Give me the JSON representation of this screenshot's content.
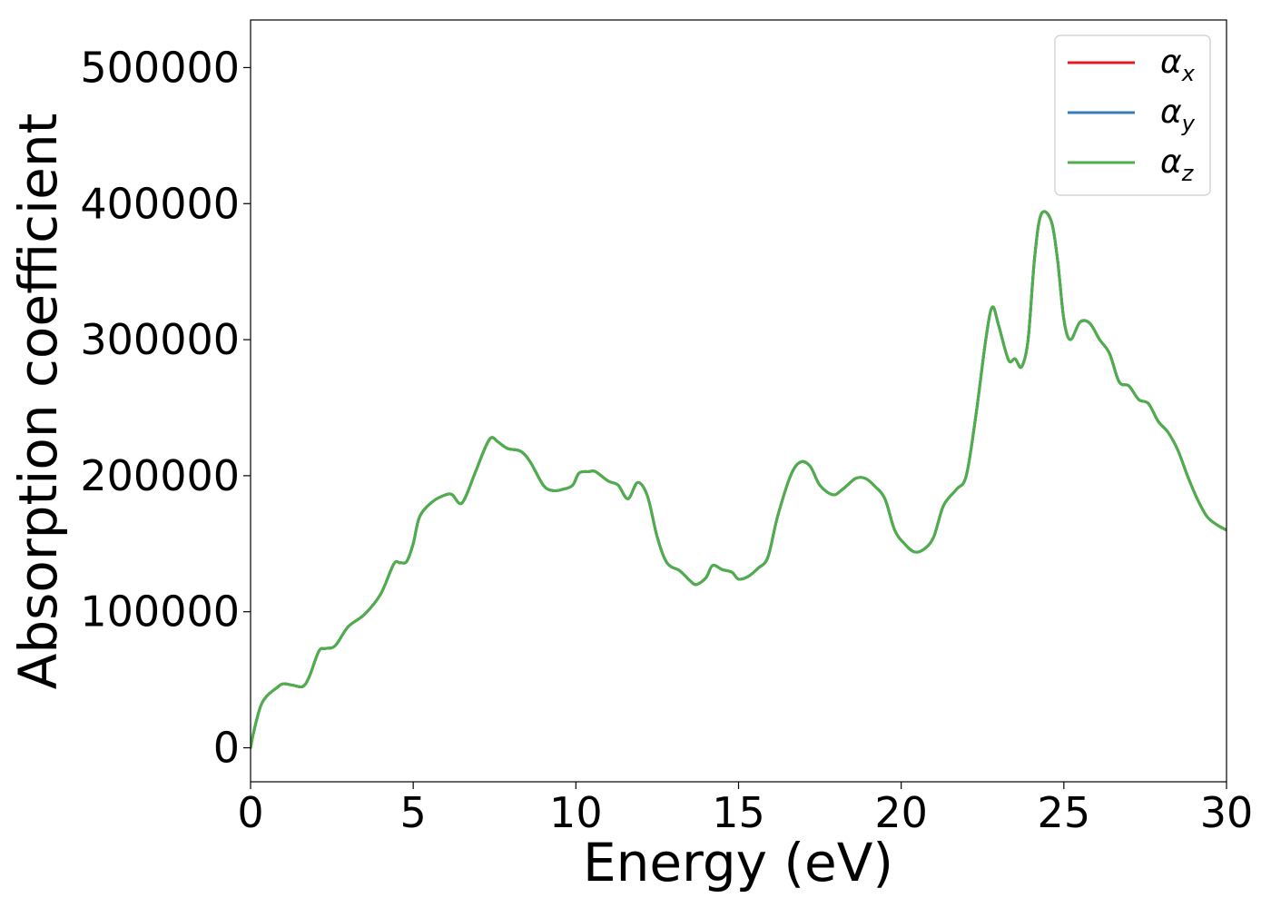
{
  "chart_data": {
    "type": "line",
    "xlabel": "Energy (eV)",
    "ylabel": "Absorption coefficient",
    "xlim": [
      0,
      30
    ],
    "ylim": [
      -25000,
      535000
    ],
    "xticks": [
      0,
      5,
      10,
      15,
      20,
      25,
      30
    ],
    "xtick_labels": [
      "0",
      "5",
      "10",
      "15",
      "20",
      "25",
      "30"
    ],
    "yticks": [
      0,
      100000,
      200000,
      300000,
      400000,
      500000
    ],
    "ytick_labels": [
      "0",
      "100000",
      "200000",
      "300000",
      "400000",
      "500000"
    ],
    "grid": false,
    "legend_position": "top-right",
    "x": [
      0,
      0.1,
      0.3,
      0.5,
      0.8,
      1.0,
      1.3,
      1.6,
      1.8,
      2.1,
      2.3,
      2.6,
      3.0,
      3.5,
      4.0,
      4.4,
      4.6,
      4.8,
      5.0,
      5.2,
      5.6,
      6.0,
      6.2,
      6.5,
      6.9,
      7.2,
      7.4,
      7.6,
      7.9,
      8.3,
      8.6,
      9.0,
      9.3,
      9.6,
      9.9,
      10.1,
      10.4,
      10.6,
      11.0,
      11.3,
      11.6,
      11.9,
      12.2,
      12.5,
      12.8,
      13.2,
      13.5,
      13.7,
      14.0,
      14.2,
      14.5,
      14.8,
      15.0,
      15.3,
      15.6,
      15.9,
      16.2,
      16.6,
      16.9,
      17.2,
      17.5,
      17.9,
      18.2,
      18.6,
      18.9,
      19.2,
      19.5,
      19.8,
      20.1,
      20.4,
      20.7,
      21.0,
      21.3,
      21.7,
      22.0,
      22.3,
      22.6,
      22.8,
      23.0,
      23.3,
      23.5,
      23.7,
      23.9,
      24.1,
      24.3,
      24.6,
      24.8,
      25.0,
      25.2,
      25.5,
      25.8,
      26.1,
      26.4,
      26.7,
      27.0,
      27.3,
      27.6,
      27.9,
      28.2,
      28.5,
      28.8,
      29.1,
      29.4,
      29.7,
      30.0
    ],
    "series": [
      {
        "name": "α_x",
        "color": "#e41a1c",
        "values": [
          0,
          12000,
          30000,
          38000,
          44000,
          47000,
          46000,
          45000,
          52000,
          71000,
          73000,
          75000,
          89000,
          98000,
          113000,
          135000,
          136000,
          137000,
          150000,
          170000,
          181000,
          186000,
          186000,
          180000,
          202000,
          220000,
          228000,
          225000,
          220000,
          218000,
          210000,
          193000,
          189000,
          190000,
          193000,
          202000,
          203000,
          203000,
          196000,
          193000,
          183000,
          195000,
          185000,
          155000,
          136000,
          130000,
          123000,
          120000,
          125000,
          134000,
          131000,
          129000,
          124000,
          126000,
          132000,
          140000,
          170000,
          200000,
          210000,
          207000,
          193000,
          186000,
          190000,
          198000,
          198000,
          192000,
          183000,
          160000,
          150000,
          144000,
          146000,
          155000,
          178000,
          190000,
          200000,
          245000,
          300000,
          324000,
          310000,
          285000,
          286000,
          280000,
          300000,
          360000,
          392000,
          388000,
          360000,
          315000,
          300000,
          313000,
          312000,
          300000,
          290000,
          269000,
          266000,
          256000,
          253000,
          240000,
          232000,
          219000,
          200000,
          183000,
          170000,
          164000,
          160000
        ]
      },
      {
        "name": "α_y",
        "color": "#377eb8",
        "values": [
          0,
          12000,
          30000,
          38000,
          44000,
          47000,
          46000,
          45000,
          52000,
          71000,
          73000,
          75000,
          89000,
          98000,
          113000,
          135000,
          136000,
          137000,
          150000,
          170000,
          181000,
          186000,
          186000,
          180000,
          202000,
          220000,
          228000,
          225000,
          220000,
          218000,
          210000,
          193000,
          189000,
          190000,
          193000,
          202000,
          203000,
          203000,
          196000,
          193000,
          183000,
          195000,
          185000,
          155000,
          136000,
          130000,
          123000,
          120000,
          125000,
          134000,
          131000,
          129000,
          124000,
          126000,
          132000,
          140000,
          170000,
          200000,
          210000,
          207000,
          193000,
          186000,
          190000,
          198000,
          198000,
          192000,
          183000,
          160000,
          150000,
          144000,
          146000,
          155000,
          178000,
          190000,
          200000,
          245000,
          300000,
          324000,
          310000,
          285000,
          286000,
          280000,
          300000,
          360000,
          392000,
          388000,
          360000,
          315000,
          300000,
          313000,
          312000,
          300000,
          290000,
          269000,
          266000,
          256000,
          253000,
          240000,
          232000,
          219000,
          200000,
          183000,
          170000,
          164000,
          160000
        ]
      },
      {
        "name": "α_z",
        "color": "#4daf4a",
        "values": [
          0,
          12000,
          30000,
          38000,
          44000,
          47000,
          46000,
          45000,
          52000,
          71000,
          73000,
          75000,
          89000,
          98000,
          113000,
          135000,
          136000,
          137000,
          150000,
          170000,
          181000,
          186000,
          186000,
          180000,
          202000,
          220000,
          228000,
          225000,
          220000,
          218000,
          210000,
          193000,
          189000,
          190000,
          193000,
          202000,
          203000,
          203000,
          196000,
          193000,
          183000,
          195000,
          185000,
          155000,
          136000,
          130000,
          123000,
          120000,
          125000,
          134000,
          131000,
          129000,
          124000,
          126000,
          132000,
          140000,
          170000,
          200000,
          210000,
          207000,
          193000,
          186000,
          190000,
          198000,
          198000,
          192000,
          183000,
          160000,
          150000,
          144000,
          146000,
          155000,
          178000,
          190000,
          200000,
          245000,
          300000,
          324000,
          310000,
          285000,
          286000,
          280000,
          300000,
          360000,
          392000,
          388000,
          360000,
          315000,
          300000,
          313000,
          312000,
          300000,
          290000,
          269000,
          266000,
          256000,
          253000,
          240000,
          232000,
          219000,
          200000,
          183000,
          170000,
          164000,
          160000
        ]
      }
    ],
    "legend": [
      {
        "symbol": "α",
        "sub": "x",
        "color": "#e41a1c"
      },
      {
        "symbol": "α",
        "sub": "y",
        "color": "#377eb8"
      },
      {
        "symbol": "α",
        "sub": "z",
        "color": "#4daf4a"
      }
    ]
  }
}
